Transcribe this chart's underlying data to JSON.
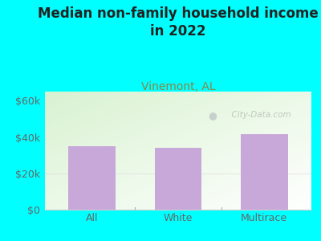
{
  "title": "Median non-family household income\nin 2022",
  "subtitle": "Vinemont, AL",
  "categories": [
    "All",
    "White",
    "Multirace"
  ],
  "values": [
    35000,
    34000,
    41500
  ],
  "bar_color": "#c8a8d8",
  "title_fontsize": 12,
  "subtitle_fontsize": 10,
  "subtitle_color": "#888844",
  "title_color": "#222222",
  "ylabel_ticks": [
    0,
    20000,
    40000,
    60000
  ],
  "ylabel_labels": [
    "$0",
    "$20k",
    "$40k",
    "$60k"
  ],
  "ylim": [
    0,
    65000
  ],
  "bg_outer": "#00ffff",
  "tick_color": "#666666",
  "watermark": "  City-Data.com",
  "bar_xlim": [
    -0.55,
    2.55
  ]
}
